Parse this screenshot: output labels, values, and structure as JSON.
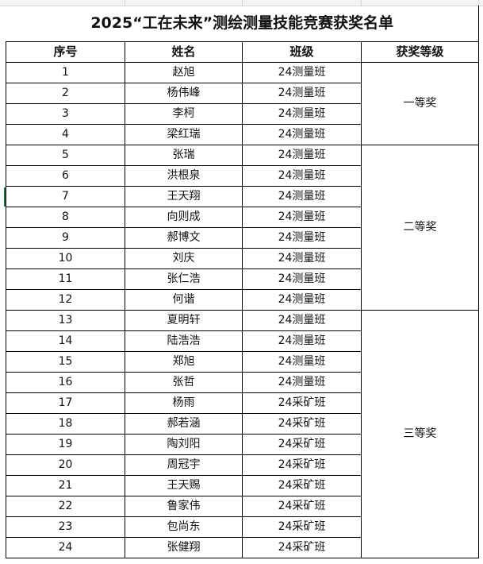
{
  "title": "2025“工在未来”测绘测量技能竞赛获奖名单",
  "headers": [
    "序号",
    "姓名",
    "班级",
    "获奖等级"
  ],
  "rows": [
    {
      "no": "1",
      "name": "赵旭",
      "class": "24测量班"
    },
    {
      "no": "2",
      "name": "杨伟峰",
      "class": "24测量班"
    },
    {
      "no": "3",
      "name": "李柯",
      "class": "24测量班"
    },
    {
      "no": "4",
      "name": "梁红瑞",
      "class": "24测量班"
    },
    {
      "no": "5",
      "name": "张瑞",
      "class": "24测量班"
    },
    {
      "no": "6",
      "name": "洪根泉",
      "class": "24测量班"
    },
    {
      "no": "7",
      "name": "王天翔",
      "class": "24测量班"
    },
    {
      "no": "8",
      "name": "向则成",
      "class": "24测量班"
    },
    {
      "no": "9",
      "name": "郝博文",
      "class": "24测量班"
    },
    {
      "no": "10",
      "name": "刘庆",
      "class": "24测量班"
    },
    {
      "no": "11",
      "name": "张仁浩",
      "class": "24测量班"
    },
    {
      "no": "12",
      "name": "何谐",
      "class": "24测量班"
    },
    {
      "no": "13",
      "name": "夏明轩",
      "class": "24测量班"
    },
    {
      "no": "14",
      "name": "陆浩浩",
      "class": "24测量班"
    },
    {
      "no": "15",
      "name": "郑旭",
      "class": "24测量班"
    },
    {
      "no": "16",
      "name": "张哲",
      "class": "24测量班"
    },
    {
      "no": "17",
      "name": "杨雨",
      "class": "24采矿班"
    },
    {
      "no": "18",
      "name": "郝若涵",
      "class": "24采矿班"
    },
    {
      "no": "19",
      "name": "陶刘阳",
      "class": "24采矿班"
    },
    {
      "no": "20",
      "name": "周冠宇",
      "class": "24采矿班"
    },
    {
      "no": "21",
      "name": "王天赐",
      "class": "24采矿班"
    },
    {
      "no": "22",
      "name": "鲁家伟",
      "class": "24采矿班"
    },
    {
      "no": "23",
      "name": "包尚东",
      "class": "24采矿班"
    },
    {
      "no": "24",
      "name": "张健翔",
      "class": "24采矿班"
    }
  ],
  "awards": [
    {
      "label": "一等奖",
      "rows": 4
    },
    {
      "label": "二等奖",
      "rows": 8
    },
    {
      "label": "三等奖",
      "rows": 12
    }
  ]
}
